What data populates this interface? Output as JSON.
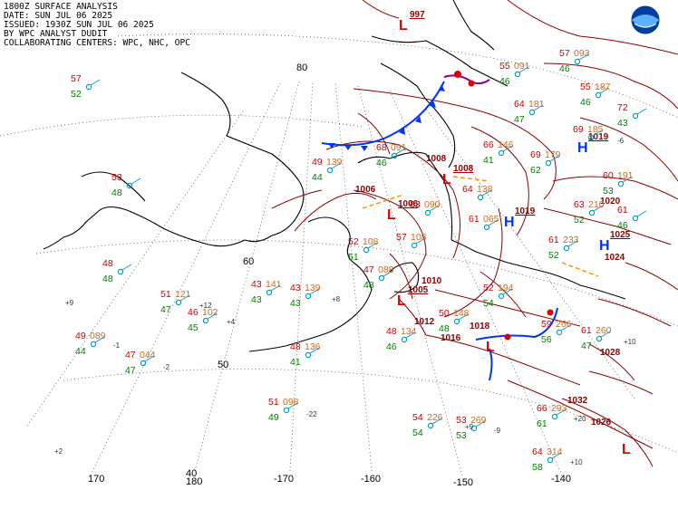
{
  "header": {
    "title": "1800Z SURFACE ANALYSIS",
    "date": "DATE: SUN JUL 06 2025",
    "issued": "ISSUED: 1930Z SUN JUL 06 2025",
    "analyst": "BY WPC ANALYST DUDIT",
    "centers": "COLLABORATING CENTERS: WPC, NHC, OPC"
  },
  "latitude_labels": [
    "80",
    "60",
    "50"
  ],
  "longitude_labels": [
    "170",
    "180",
    "-170",
    "-160",
    "-150",
    "-140"
  ],
  "pressure_centers": [
    {
      "type": "L",
      "color": "#e00000",
      "value": "997"
    },
    {
      "type": "L",
      "color": "#e00000",
      "value": "1008"
    },
    {
      "type": "L",
      "color": "#e00000",
      "value": "1006"
    },
    {
      "type": "L",
      "color": "#e00000",
      "value": "1005"
    },
    {
      "type": "L",
      "color": "#e00000",
      "value": ""
    },
    {
      "type": "L",
      "color": "#e00000",
      "value": ""
    },
    {
      "type": "H",
      "color": "#0033ff",
      "value": "1019"
    },
    {
      "type": "H",
      "color": "#0033ff",
      "value": "1019"
    },
    {
      "type": "H",
      "color": "#0033ff",
      "value": "1025"
    },
    {
      "type": "H",
      "color": "#0033ff",
      "value": "1018"
    }
  ],
  "isobar_labels": [
    "1008",
    "1006",
    "1010",
    "1012",
    "1016",
    "1018",
    "1024",
    "1028",
    "1032",
    "1026",
    "1020"
  ],
  "station_plots": [
    {
      "temp": "57",
      "dew": "52",
      "press": ""
    },
    {
      "temp": "53",
      "dew": "48",
      "press": ""
    },
    {
      "temp": "48",
      "dew": "48",
      "press": ""
    },
    {
      "temp": "51",
      "dew": "47",
      "press": "121"
    },
    {
      "temp": "46",
      "dew": "45",
      "press": "102"
    },
    {
      "temp": "49",
      "dew": "44",
      "press": "089"
    },
    {
      "temp": "47",
      "dew": "47",
      "press": "044"
    },
    {
      "temp": "43",
      "dew": "43",
      "press": "141"
    },
    {
      "temp": "43",
      "dew": "43",
      "press": "139"
    },
    {
      "temp": "48",
      "dew": "41",
      "press": "136"
    },
    {
      "temp": "51",
      "dew": "49",
      "press": "098"
    },
    {
      "temp": "54",
      "dew": "54",
      "press": "226"
    },
    {
      "temp": "53",
      "dew": "53",
      "press": "269"
    },
    {
      "temp": "66",
      "dew": "61",
      "press": "293"
    },
    {
      "temp": "64",
      "dew": "58",
      "press": "314"
    },
    {
      "temp": "59",
      "dew": "56",
      "press": "266"
    },
    {
      "temp": "61",
      "dew": "47",
      "press": "260"
    },
    {
      "temp": "48",
      "dew": "46",
      "press": "134"
    },
    {
      "temp": "50",
      "dew": "48",
      "press": "148"
    },
    {
      "temp": "52",
      "dew": "54",
      "press": "194"
    },
    {
      "temp": "49",
      "dew": "44",
      "press": "139"
    },
    {
      "temp": "52",
      "dew": "51",
      "press": "108"
    },
    {
      "temp": "57",
      "dew": "",
      "press": "108"
    },
    {
      "temp": "61",
      "dew": "52",
      "press": "233"
    },
    {
      "temp": "63",
      "dew": "52",
      "press": "210"
    },
    {
      "temp": "60",
      "dew": "53",
      "press": "191"
    },
    {
      "temp": "61",
      "dew": "46",
      "press": ""
    },
    {
      "temp": "69",
      "dew": "62",
      "press": "179"
    },
    {
      "temp": "69",
      "dew": "",
      "press": "185"
    },
    {
      "temp": "66",
      "dew": "41",
      "press": "146"
    },
    {
      "temp": "64",
      "dew": "47",
      "press": "181"
    },
    {
      "temp": "64",
      "dew": "",
      "press": "138"
    },
    {
      "temp": "55",
      "dew": "46",
      "press": "187"
    },
    {
      "temp": "72",
      "dew": "43",
      "press": ""
    },
    {
      "temp": "57",
      "dew": "46",
      "press": "093"
    },
    {
      "temp": "55",
      "dew": "46",
      "press": "091"
    },
    {
      "temp": "68",
      "dew": "46",
      "press": "091"
    },
    {
      "temp": "63",
      "dew": "",
      "press": "090"
    },
    {
      "temp": "61",
      "dew": "",
      "press": "065"
    },
    {
      "temp": "47",
      "dew": "48",
      "press": "088"
    }
  ],
  "pressure_tendencies": [
    "+9",
    "+12",
    "+4",
    "-1",
    "-2",
    "+8",
    "-22",
    "+2",
    "+10",
    "+20",
    "+10",
    "+9",
    "-9",
    "-6"
  ]
}
